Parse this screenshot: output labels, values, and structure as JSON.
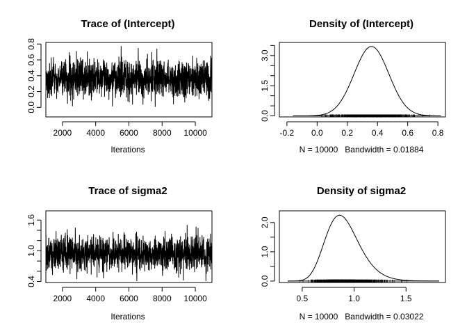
{
  "chart_data": [
    {
      "type": "line",
      "title": "Trace of (Intercept)",
      "xlabel": "Iterations",
      "ylabel": "",
      "xlim": [
        1001,
        11000
      ],
      "ylim": [
        -0.12,
        0.82
      ],
      "x_ticks": [
        2000,
        4000,
        6000,
        8000,
        10000
      ],
      "x_tick_labels": [
        "2000",
        "4000",
        "6000",
        "8000",
        "10000"
      ],
      "y_ticks": [
        0.0,
        0.2,
        0.4,
        0.6,
        0.8
      ],
      "y_tick_labels": [
        "0.0",
        "0.2",
        "0.4",
        "0.6",
        "0.8"
      ],
      "series": [
        {
          "mean": 0.36,
          "sd": 0.115,
          "n": 10000
        }
      ],
      "grid": false,
      "color": "#000000"
    },
    {
      "type": "line",
      "title": "Density of (Intercept)",
      "xlabel": "N = 10000   Bandwidth = 0.01884",
      "ylabel": "",
      "xlim": [
        -0.25,
        0.85
      ],
      "ylim": [
        -0.05,
        3.65
      ],
      "x_ticks": [
        -0.2,
        0.0,
        0.2,
        0.4,
        0.6,
        0.8
      ],
      "x_tick_labels": [
        "-0.2",
        "0.0",
        "0.2",
        "0.4",
        "0.6",
        "0.8"
      ],
      "y_ticks": [
        0.0,
        0.5,
        1.0,
        1.5,
        2.0,
        2.5,
        3.0,
        3.5
      ],
      "y_tick_labels": [
        "0.0",
        "",
        "",
        "1.5",
        "",
        "",
        "3.0",
        ""
      ],
      "density": {
        "mode": 0.36,
        "peak": 3.45,
        "sd": 0.115,
        "support": [
          -0.16,
          0.82
        ]
      },
      "grid": false,
      "color": "#000000"
    },
    {
      "type": "line",
      "title": "Trace of sigma2",
      "xlabel": "Iterations",
      "ylabel": "",
      "xlim": [
        1001,
        11000
      ],
      "ylim": [
        0.38,
        1.78
      ],
      "x_ticks": [
        2000,
        4000,
        6000,
        8000,
        10000
      ],
      "x_tick_labels": [
        "2000",
        "4000",
        "6000",
        "8000",
        "10000"
      ],
      "y_ticks": [
        0.4,
        0.6,
        0.8,
        1.0,
        1.2,
        1.4,
        1.6
      ],
      "y_tick_labels": [
        "0.4",
        "",
        "",
        "1.0",
        "",
        "",
        "1.6"
      ],
      "series": [
        {
          "mean": 0.93,
          "sd": 0.19,
          "n": 10000
        }
      ],
      "grid": false,
      "color": "#000000"
    },
    {
      "type": "line",
      "title": "Density of sigma2",
      "xlabel": "N = 10000   Bandwidth = 0.03022",
      "ylabel": "",
      "xlim": [
        0.28,
        1.88
      ],
      "ylim": [
        -0.05,
        2.4
      ],
      "x_ticks": [
        0.5,
        1.0,
        1.5
      ],
      "x_tick_labels": [
        "0.5",
        "1.0",
        "1.5"
      ],
      "y_ticks": [
        0.0,
        0.5,
        1.0,
        1.5,
        2.0
      ],
      "y_tick_labels": [
        "0.0",
        "",
        "1.0",
        "",
        "2.0"
      ],
      "density": {
        "mode": 0.86,
        "peak": 2.25,
        "support": [
          0.36,
          1.82
        ]
      },
      "grid": false,
      "color": "#000000"
    }
  ]
}
